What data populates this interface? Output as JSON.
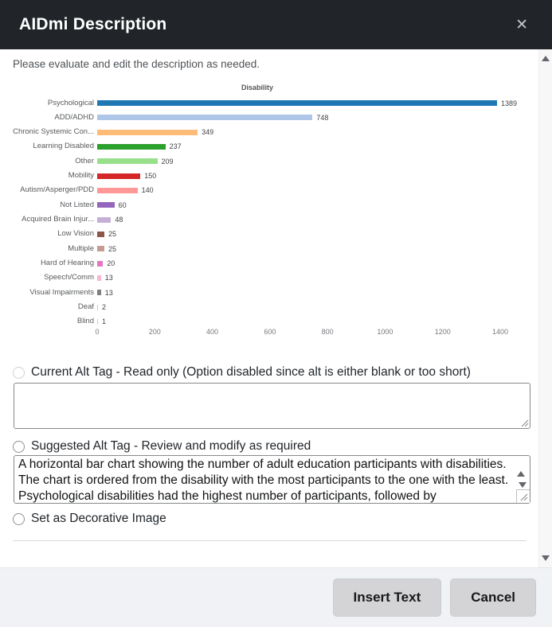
{
  "modal": {
    "title": "AIDmi Description",
    "close": "✕",
    "instruction": "Please evaluate and edit the description as needed.",
    "options": [
      {
        "id": "current",
        "label": "Current Alt Tag - Read only (Option disabled since alt is either blank or too short)",
        "disabled": true,
        "selected": false,
        "value": ""
      },
      {
        "id": "suggested",
        "label": "Suggested Alt Tag - Review and modify as required",
        "disabled": false,
        "selected": false,
        "value": "A horizontal bar chart showing the number of adult education participants with disabilities. The chart is ordered from the disability with the most participants to the one with the least. Psychological disabilities had the highest number of participants, followed by"
      },
      {
        "id": "decorative",
        "label": "Set as Decorative Image",
        "disabled": false,
        "selected": false
      }
    ],
    "footer": {
      "insert_button": "Insert Text",
      "cancel_button": "Cancel"
    },
    "colors": {
      "header_bg": "#212529",
      "footer_bg": "#f1f2f6",
      "button_bg": "#d4d4d6"
    }
  },
  "chart_data": {
    "type": "bar",
    "orientation": "horizontal",
    "title": "Disability",
    "categories": [
      "Psychological",
      "ADD/ADHD",
      "Chronic Systemic Con...",
      "Learning Disabled",
      "Other",
      "Mobility",
      "Autism/Asperger/PDD",
      "Not Listed",
      "Acquired Brain Injur...",
      "Low Vision",
      "Multiple",
      "Hard of Hearing",
      "Speech/Comm",
      "Visual Impairments",
      "Deaf",
      "Blind"
    ],
    "values": [
      1389,
      748,
      349,
      237,
      209,
      150,
      140,
      60,
      48,
      25,
      25,
      20,
      13,
      13,
      2,
      1
    ],
    "bar_colors": [
      "#1f77b4",
      "#aec7e8",
      "#ffbb78",
      "#2ca02c",
      "#98df8a",
      "#d62728",
      "#ff9896",
      "#9467bd",
      "#c5b0d5",
      "#8c564b",
      "#c49c94",
      "#e377c2",
      "#f7b6d2",
      "#7f7f7f",
      "#c7c7c7",
      "#dbdb8d"
    ],
    "x_ticks": [
      0,
      200,
      400,
      600,
      800,
      1000,
      1200,
      1400
    ],
    "xlim": [
      0,
      1400
    ],
    "grid": false,
    "value_labels": true,
    "legend": "none"
  }
}
